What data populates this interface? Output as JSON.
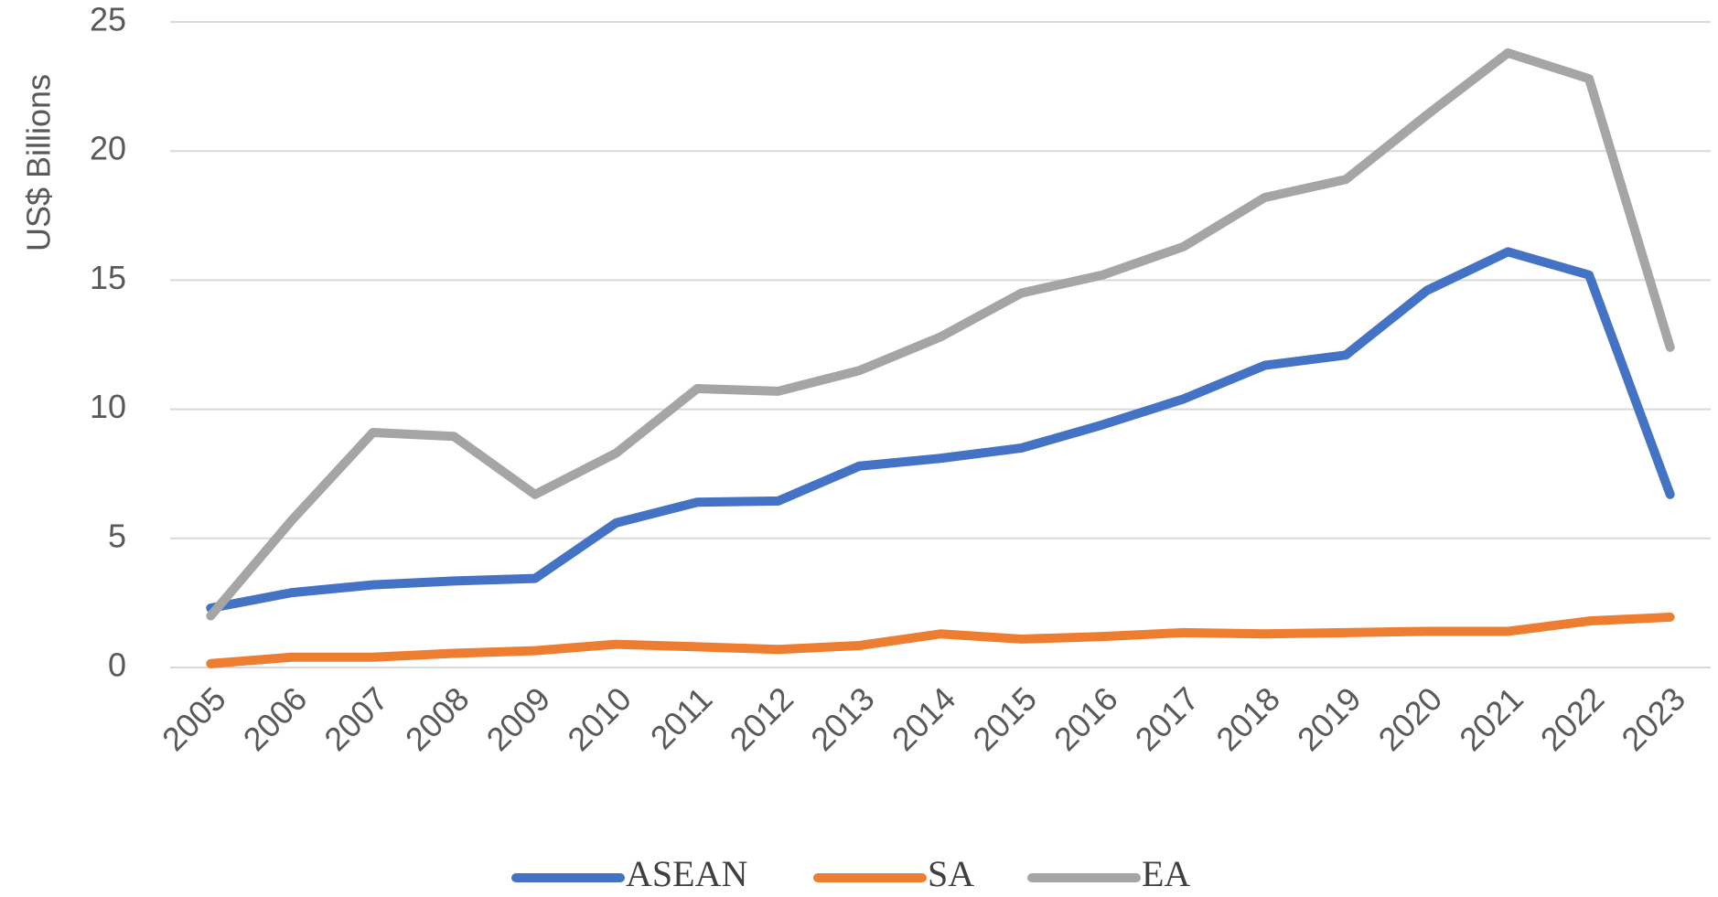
{
  "chart_data": {
    "type": "line",
    "y_label": "US$ Billions",
    "categories": [
      "2005",
      "2006",
      "2007",
      "2008",
      "2009",
      "2010",
      "2011",
      "2012",
      "2013",
      "2014",
      "2015",
      "2016",
      "2017",
      "2018",
      "2019",
      "2020",
      "2021",
      "2022",
      "2023"
    ],
    "series": [
      {
        "name": "ASEAN",
        "color": "#4472c4",
        "values": [
          2.3,
          2.9,
          3.2,
          3.35,
          3.45,
          5.6,
          6.4,
          6.45,
          7.8,
          8.1,
          8.5,
          9.4,
          10.4,
          11.7,
          12.1,
          14.6,
          16.1,
          15.2,
          6.7
        ]
      },
      {
        "name": "SA",
        "color": "#ed7d31",
        "values": [
          0.15,
          0.4,
          0.4,
          0.55,
          0.65,
          0.9,
          0.8,
          0.7,
          0.85,
          1.3,
          1.1,
          1.2,
          1.35,
          1.3,
          1.35,
          1.4,
          1.4,
          1.8,
          1.95
        ]
      },
      {
        "name": "EA",
        "color": "#a5a5a5",
        "values": [
          2.0,
          5.7,
          9.1,
          8.95,
          6.7,
          8.3,
          10.8,
          10.7,
          11.5,
          12.8,
          14.5,
          15.2,
          16.3,
          18.2,
          18.9,
          21.4,
          23.8,
          22.8,
          12.4
        ]
      }
    ],
    "ylim": [
      0,
      25
    ],
    "yticks": [
      0,
      5,
      10,
      15,
      20,
      25
    ],
    "grid": true,
    "legend": "bottom"
  }
}
